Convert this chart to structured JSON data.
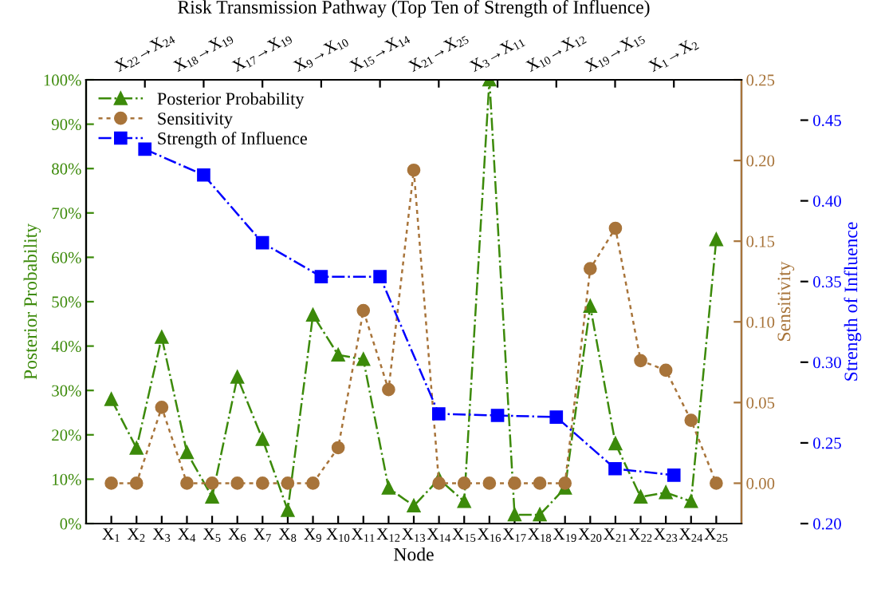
{
  "chart_data": [
    {
      "type": "line",
      "xlabel": "Node",
      "ylabel": "Posterior Probability",
      "y2label": "Sensitivity",
      "categories": [
        "X$_{1}$",
        "X$_{2}$",
        "X$_{3}$",
        "X$_{4}$",
        "X$_{5}$",
        "X$_{6}$",
        "X$_{7}$",
        "X$_{8}$",
        "X$_{9}$",
        "X$_{10}$",
        "X$_{11}$",
        "X$_{12}$",
        "X$_{13}$",
        "X$_{14}$",
        "X$_{15}$",
        "X$_{16}$",
        "X$_{17}$",
        "X$_{18}$",
        "X$_{19}$",
        "X$_{20}$",
        "X$_{21}$",
        "X$_{22}$",
        "X$_{23}$",
        "X$_{24}$",
        "X$_{25}$"
      ],
      "series": [
        {
          "name": "Posterior Probability",
          "color": "#3c8a0a",
          "marker": "triangle",
          "line_style": "dashed",
          "values": [
            28,
            17,
            42,
            16,
            6,
            33,
            19,
            3,
            47,
            38,
            37,
            8,
            4,
            10,
            5,
            100,
            2,
            2,
            8,
            49,
            18,
            6,
            7,
            5,
            64
          ]
        },
        {
          "name": "Sensitivity",
          "color": "#a8743a",
          "marker": "circle",
          "line_style": "dotted",
          "axis": "y2",
          "values": [
            0,
            0,
            0.047,
            0,
            0,
            0,
            0,
            0,
            0,
            0.022,
            0.107,
            0.058,
            0.194,
            0,
            0,
            0,
            0,
            0,
            0,
            0.133,
            0.158,
            0.076,
            0.07,
            0.039,
            0
          ]
        }
      ],
      "ylim": [
        0,
        100
      ],
      "yticks": [
        {
          "value": 0,
          "label": "0%"
        },
        {
          "value": 10,
          "label": "10%"
        },
        {
          "value": 20,
          "label": "20%"
        },
        {
          "value": 30,
          "label": "30%"
        },
        {
          "value": 40,
          "label": "40%"
        },
        {
          "value": 50,
          "label": "50%"
        },
        {
          "value": 60,
          "label": "60%"
        },
        {
          "value": 70,
          "label": "70%"
        },
        {
          "value": 80,
          "label": "80%"
        },
        {
          "value": 90,
          "label": "90%"
        },
        {
          "value": 100,
          "label": "100%"
        }
      ],
      "y2lim": [
        -0.025,
        0.25
      ],
      "y2ticks": [
        {
          "value": 0,
          "label": "0.00"
        },
        {
          "value": 0.05,
          "label": "0.05"
        },
        {
          "value": 0.1,
          "label": "0.10"
        },
        {
          "value": 0.15,
          "label": "0.15"
        },
        {
          "value": 0.2,
          "label": "0.20"
        },
        {
          "value": 0.25,
          "label": "0.25"
        }
      ],
      "legend": "top left",
      "grid": false
    },
    {
      "type": "line",
      "title": "Risk Transmission Pathway (Top Ten of Strength of Influence)",
      "ylabel": "Strength of Influence",
      "categories": [
        "X$_{22}$→X$_{24}$",
        "X$_{18}$→X$_{19}$",
        "X$_{17}$→X$_{19}$",
        "X$_{9}$→X$_{10}$",
        "X$_{15}$→X$_{14}$",
        "X$_{21}$→X$_{25}$",
        "X$_{3}$→X$_{11}$",
        "X$_{10}$→X$_{12}$",
        "X$_{19}$→X$_{15}$",
        "X$_{1}$→X$_{2}$"
      ],
      "series": [
        {
          "name": "Strength of Influence",
          "color": "#0000ff",
          "marker": "square",
          "line_style": "dashed",
          "values": [
            0.432,
            0.416,
            0.374,
            0.353,
            0.353,
            0.268,
            0.267,
            0.266,
            0.234,
            0.23
          ]
        }
      ],
      "ylim": [
        0.2,
        0.475
      ],
      "yticks": [
        {
          "value": 0.2,
          "label": "0.20"
        },
        {
          "value": 0.25,
          "label": "0.25"
        },
        {
          "value": 0.3,
          "label": "0.30"
        },
        {
          "value": 0.35,
          "label": "0.35"
        },
        {
          "value": 0.4,
          "label": "0.40"
        },
        {
          "value": 0.45,
          "label": "0.45"
        }
      ],
      "legend": "top left",
      "grid": false
    }
  ]
}
